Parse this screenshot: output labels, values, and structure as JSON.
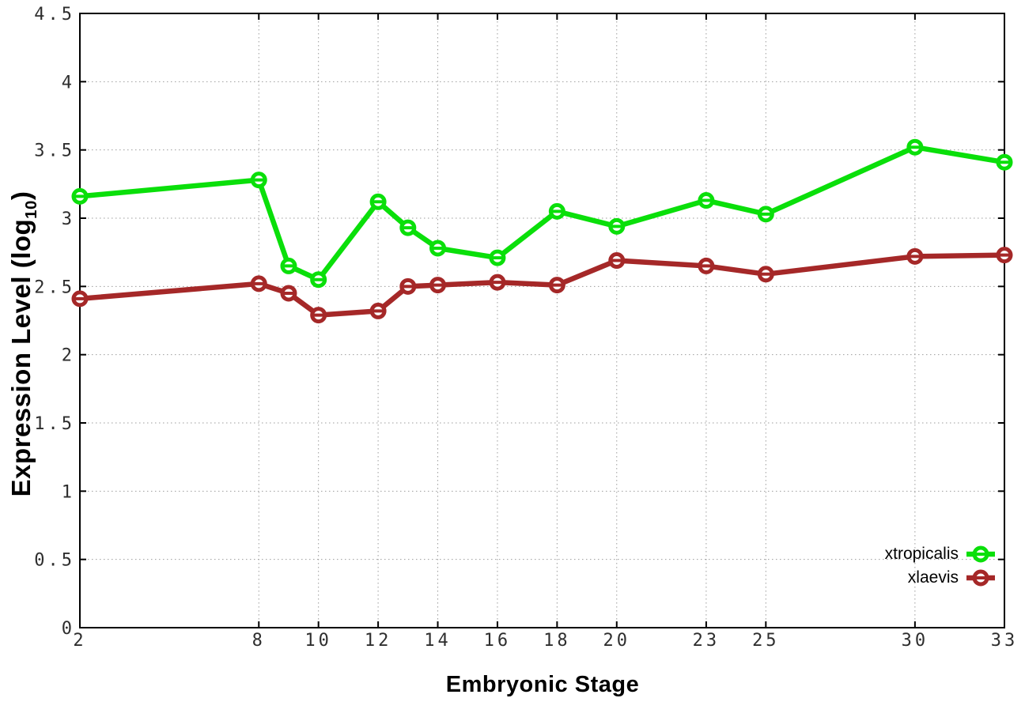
{
  "chart_data": {
    "type": "line",
    "title": "",
    "xlabel": "Embryonic Stage",
    "ylabel": "Expression Level (log10)",
    "ylabel_parts": {
      "prefix": "Expression Level (log",
      "sub": "10",
      "suffix": ")"
    },
    "xlim": [
      2,
      33
    ],
    "ylim": [
      0,
      4.5
    ],
    "x_ticks": [
      2,
      8,
      10,
      12,
      14,
      16,
      18,
      20,
      23,
      25,
      30,
      33
    ],
    "y_ticks": [
      0,
      0.5,
      1,
      1.5,
      2,
      2.5,
      3,
      3.5,
      4,
      4.5
    ],
    "grid": true,
    "legend_position": "bottom-right-inside",
    "x": [
      2,
      8,
      9,
      10,
      12,
      13,
      14,
      16,
      18,
      20,
      23,
      25,
      30,
      33
    ],
    "series": [
      {
        "name": "xtropicalis",
        "color": "#0adf0a",
        "marker": "open-circle",
        "values": [
          3.16,
          3.28,
          2.65,
          2.55,
          3.12,
          2.93,
          2.78,
          2.71,
          3.05,
          2.94,
          3.13,
          3.03,
          3.52,
          3.41
        ]
      },
      {
        "name": "xlaevis",
        "color": "#a52828",
        "marker": "open-circle",
        "values": [
          2.41,
          2.52,
          2.45,
          2.29,
          2.32,
          2.5,
          2.51,
          2.53,
          2.51,
          2.69,
          2.65,
          2.59,
          2.72,
          2.73
        ]
      }
    ],
    "colors": {
      "background": "#ffffff",
      "axis": "#000000",
      "grid": "#9c9c9c",
      "tick_label": "#2e2e2e"
    }
  }
}
